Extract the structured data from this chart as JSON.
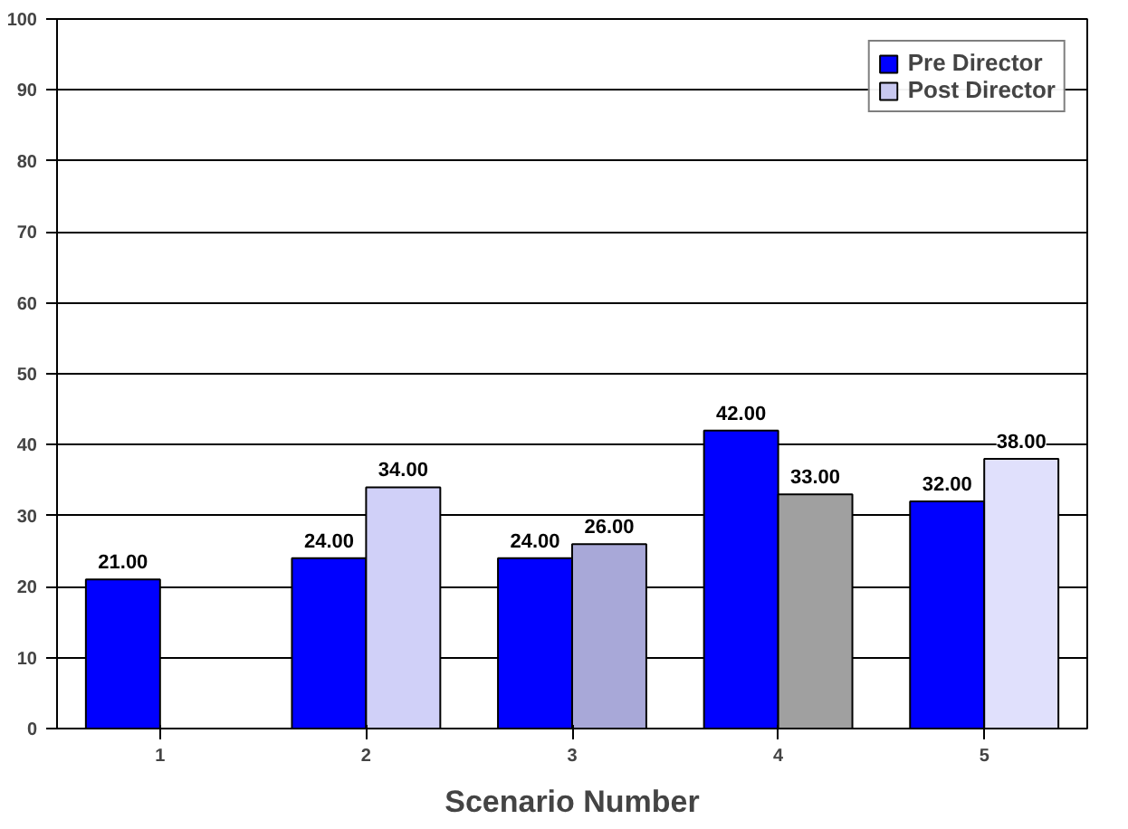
{
  "chart_data": {
    "type": "bar",
    "xlabel": "Scenario Number",
    "categories": [
      "1",
      "2",
      "3",
      "4",
      "5"
    ],
    "series": [
      {
        "name": "Pre Director",
        "color": "#0000ff",
        "values": [
          21,
          24,
          24,
          42,
          32
        ],
        "value_labels": [
          "21.00",
          "24.00",
          "24.00",
          "42.00",
          "32.00"
        ]
      },
      {
        "name": "Post Director",
        "color": "#c8c8f0",
        "colors": [
          null,
          "#d0d0f8",
          "#a8a8d8",
          "#a0a0a0",
          "#e0e0fc"
        ],
        "values": [
          null,
          34,
          26,
          33,
          38
        ],
        "value_labels": [
          null,
          "34.00",
          "26.00",
          "33.00",
          "38.00"
        ]
      }
    ],
    "ylim": [
      0,
      100
    ],
    "yticks": [
      0,
      10,
      20,
      30,
      40,
      50,
      60,
      70,
      80,
      90,
      100
    ],
    "grid": "y",
    "legend": "top right"
  }
}
